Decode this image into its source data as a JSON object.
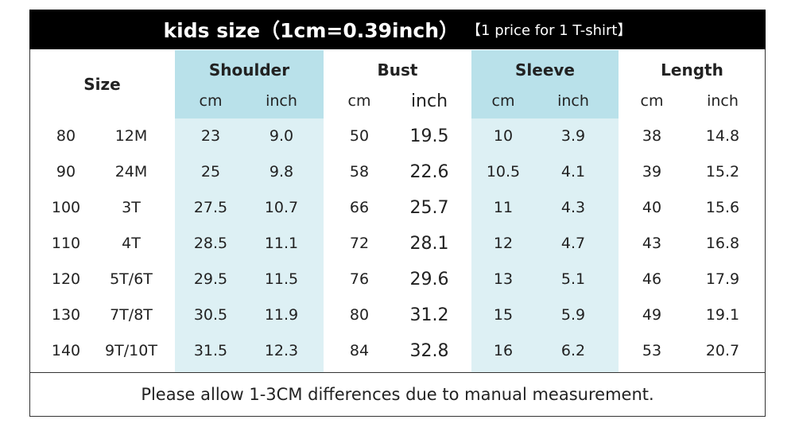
{
  "header": {
    "title": "kids size（1cm=0.39inch）",
    "note": "【1 price for 1 T-shirt】"
  },
  "table": {
    "group_headers": [
      "Size",
      "Shoulder",
      "Bust",
      "Sleeve",
      "Length"
    ],
    "sub_headers": [
      "cm",
      "inch",
      "cm",
      "inch",
      "cm",
      "inch",
      "cm",
      "inch"
    ],
    "rows": [
      [
        "80",
        "12M",
        "23",
        "9.0",
        "50",
        "19.5",
        "10",
        "3.9",
        "38",
        "14.8"
      ],
      [
        "90",
        "24M",
        "25",
        "9.8",
        "58",
        "22.6",
        "10.5",
        "4.1",
        "39",
        "15.2"
      ],
      [
        "100",
        "3T",
        "27.5",
        "10.7",
        "66",
        "25.7",
        "11",
        "4.3",
        "40",
        "15.6"
      ],
      [
        "110",
        "4T",
        "28.5",
        "11.1",
        "72",
        "28.1",
        "12",
        "4.7",
        "43",
        "16.8"
      ],
      [
        "120",
        "5T/6T",
        "29.5",
        "11.5",
        "76",
        "29.6",
        "13",
        "5.1",
        "46",
        "17.9"
      ],
      [
        "130",
        "7T/8T",
        "30.5",
        "11.9",
        "80",
        "31.2",
        "15",
        "5.9",
        "49",
        "19.1"
      ],
      [
        "140",
        "9T/10T",
        "31.5",
        "12.3",
        "84",
        "32.8",
        "16",
        "6.2",
        "53",
        "20.7"
      ]
    ]
  },
  "footer": "Please allow 1-3CM differences due to manual measurement."
}
